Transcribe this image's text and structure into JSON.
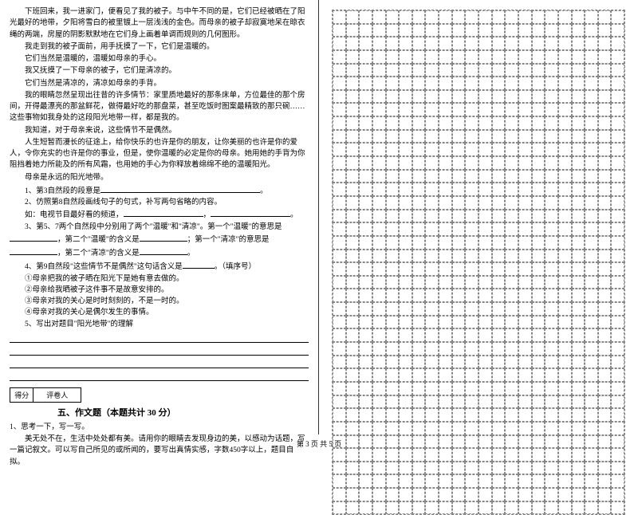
{
  "passage": {
    "p1": "下班回来，我一进家门，便看见了我的被子。与中午不同的是，它们已经被晒在了阳光最好的地带，夕阳将雪白的被里镀上一层浅浅的金色。而母亲的被子却寂寞地呆在晾衣绳的两端，房屋的阴影默默地在它们身上画着单调而规则的几何图形。",
    "p2": "我走到我的被子面前，用手抚摸了一下，它们是温暖的。",
    "p3": "它们当然是温暖的，温暖如母亲的手心。",
    "p4": "我又抚摸了一下母亲的被子，它们是清凉的。",
    "p5": "它们当然是清凉的，清凉如母亲的手背。",
    "p6": "我的眼睛忽然呈现出往昔的许多情节：家里质地最好的那条床单，方位最佳的那个房间，开得最漂亮的那盆鲜花，做得最好吃的那盘菜，甚至吃饭时图案最精致的那只碗……这些事物如我身处的这段阳光地带一样，都是我的。",
    "p7": "我知道，对于母亲来说，这些情节不是偶然。",
    "p8": "人生短暂而漫长的征途上，给你快乐的也许是你的朋友，让你美丽的也许是你的爱人，令你充实的也许是你的事业，但是，使你温暖的必定是你的母亲。她用她的手背为你阻挡着她力所能及的所有风霜，也用她的手心为你释放着绵绵不绝的温暖阳光。",
    "p9": "母亲是永远的阳光地带。"
  },
  "questions": {
    "q1": "1、第3自然段的段意是",
    "q2a": "2、仿照第8自然段画线句子的句式，补写两句省略的内容。",
    "q2b": "如：电视节目最好看的频道，",
    "q3a": "3、第5、7两个自然段中分别用了两个\"温暖\"和\"清凉\"。第一个\"温暖\"的意思是",
    "q3b": "，第二个\"温暖\"的含义是",
    "q3c": "；第一个\"清凉\"的意思是",
    "q3d": "，第二个\"清凉\"的含义是",
    "q4a": "4、第9自然段\"这些情节不是偶然\"这句话含义是",
    "q4b": "。（填序号）",
    "q4opt1": "①母亲把我的被子晒在阳光下是她有意去做的。",
    "q4opt2": "②母亲给我晒被子这件事不是故意安排的。",
    "q4opt3": "③母亲对我的关心是时时刻刻的，不是一时的。",
    "q4opt4": "④母亲对我的关心是偶尔发生的事情。",
    "q5": "5、写出对题目\"阳光地带\"的理解"
  },
  "section": {
    "header_score": "得分",
    "header_reviewer": "评卷人",
    "title": "五、作文题（本题共计 30 分）",
    "prompt_label": "1、思考一下，写一写。",
    "prompt_text": "美无处不在，生活中处处都有美。请用你的眼睛去发现身边的美，以感动为话题，写一篇记叙文。可以写自己所见的或所闻的，要写出真情实感，字数450字以上，题目自拟。"
  },
  "footer": "第 3 页  共 5 页",
  "grid": {
    "rows": 38,
    "cols": 22
  }
}
